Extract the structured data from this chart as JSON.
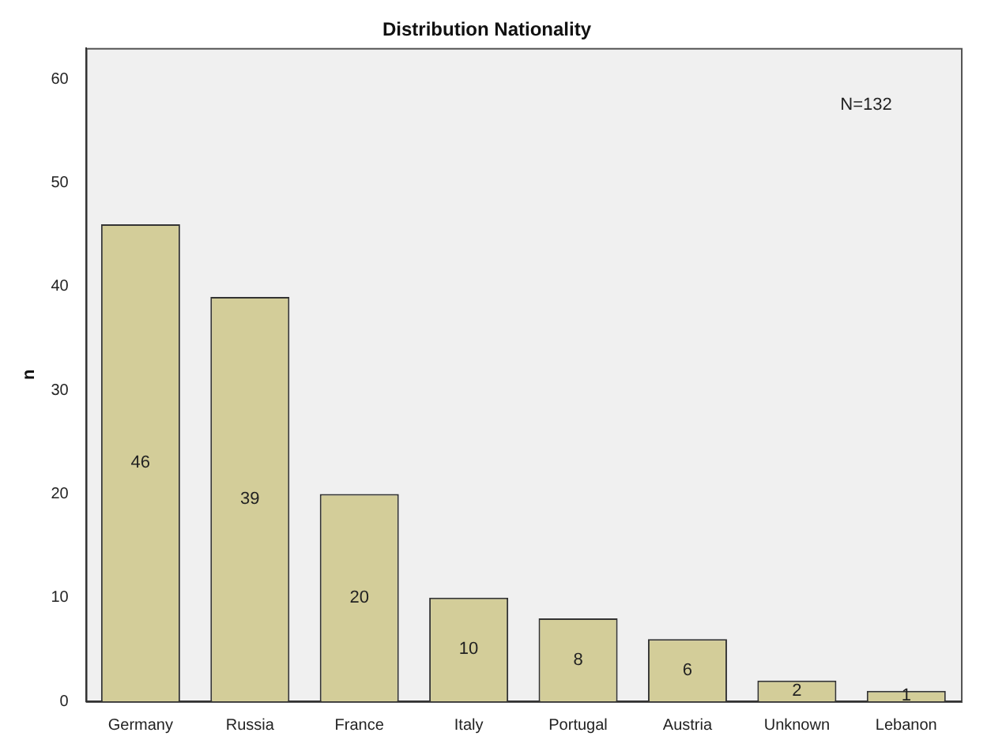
{
  "chart_data": {
    "type": "bar",
    "title": "Distribution Nationality",
    "ylabel": "n",
    "categories": [
      "Germany",
      "Russia",
      "France",
      "Italy",
      "Portugal",
      "Austria",
      "Unknown",
      "Lebanon"
    ],
    "values": [
      46,
      39,
      20,
      10,
      8,
      6,
      2,
      1
    ],
    "color": "#d3cd99",
    "ylim": [
      0,
      63
    ],
    "yticks": [
      0,
      10,
      20,
      30,
      40,
      50,
      60
    ],
    "grid": false,
    "legend": false,
    "data_labels": true,
    "annotations": [
      "N=132"
    ]
  }
}
